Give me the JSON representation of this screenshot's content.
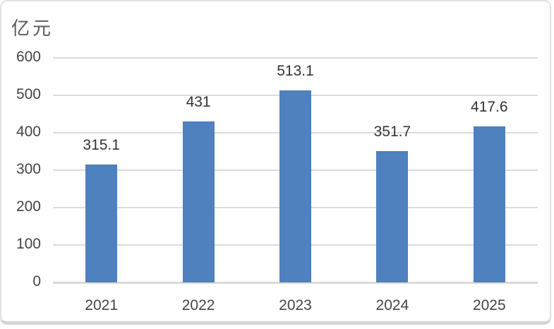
{
  "chart": {
    "unit_label": "亿元"
  },
  "chart_data": {
    "type": "bar",
    "title": "",
    "ylabel": "亿元",
    "xlabel": "",
    "categories": [
      "2021",
      "2022",
      "2023",
      "2024",
      "2025"
    ],
    "values": [
      315.1,
      431,
      513.1,
      351.7,
      417.6
    ],
    "value_labels": [
      "315.1",
      "431",
      "513.1",
      "351.7",
      "417.6"
    ],
    "yticks": [
      0,
      100,
      200,
      300,
      400,
      500,
      600
    ],
    "ylim": [
      0,
      600
    ],
    "grid": true,
    "legend": false,
    "colors": {
      "bar": "#4E81BD",
      "gridline": "#DBDBDB",
      "axis_line": "#D9D9D9",
      "tick_text": "#444444",
      "value_text": "#333333",
      "unit_text": "#595959",
      "card_border": "#E0E0E0"
    }
  }
}
